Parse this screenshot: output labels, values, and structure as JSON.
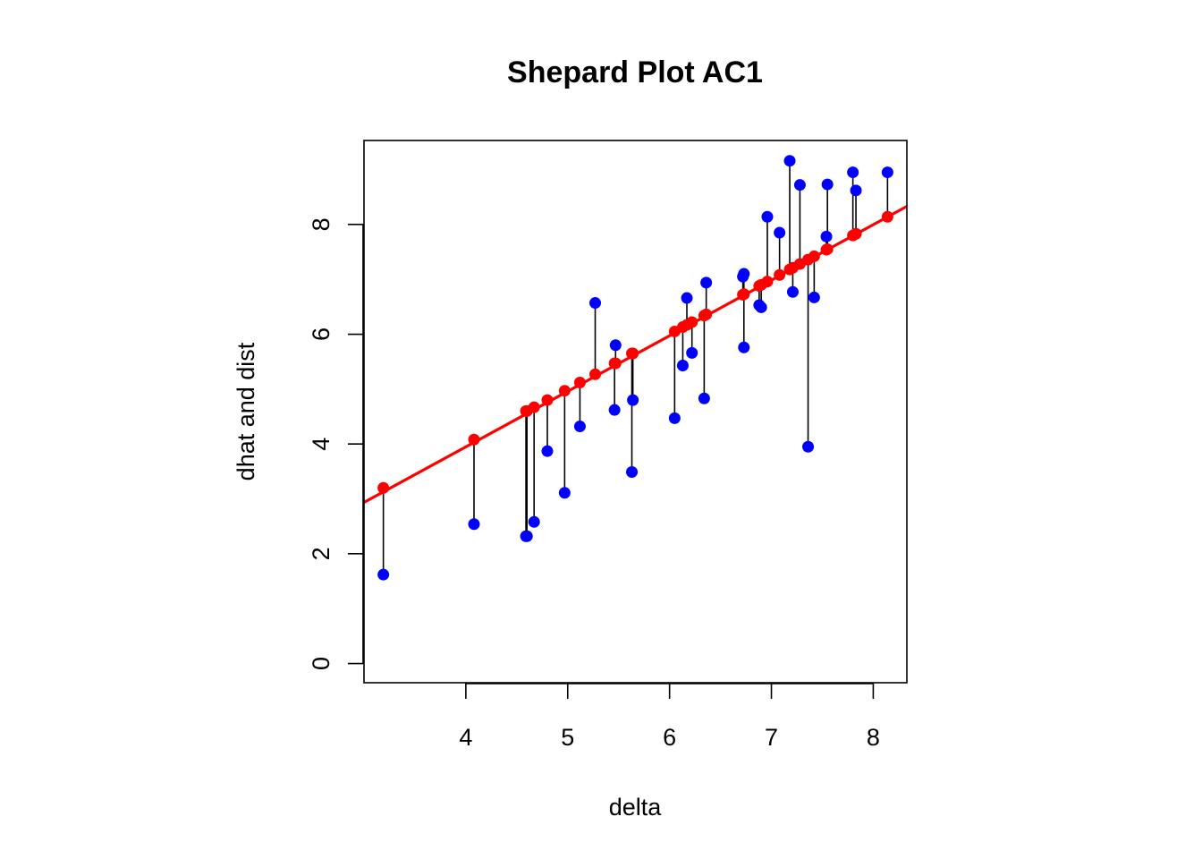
{
  "chart_data": {
    "type": "scatter",
    "title": "Shepard Plot AC1",
    "xlabel": "delta",
    "ylabel": "dhat and dist",
    "xlim": [
      3.0,
      8.33
    ],
    "ylim": [
      -0.35,
      9.53
    ],
    "xticks": [
      4,
      5,
      6,
      7,
      8
    ],
    "yticks": [
      0,
      2,
      4,
      6,
      8
    ],
    "grid": false,
    "legend": "none",
    "colors": {
      "dist_points": "#0000ff",
      "dhat_points": "#ff0000",
      "fit_line": "#ff0000",
      "residual_lines": "#000000",
      "frame": "#000000"
    },
    "fit_line": {
      "intercept": -0.1,
      "slope": 1.012
    },
    "series": [
      {
        "name": "dist",
        "x": [
          3.19,
          4.08,
          4.59,
          4.6,
          4.67,
          4.8,
          4.97,
          5.12,
          5.27,
          5.46,
          5.47,
          5.63,
          5.64,
          6.05,
          6.13,
          6.17,
          6.22,
          6.34,
          6.36,
          6.72,
          6.73,
          6.73,
          6.88,
          6.9,
          6.96,
          7.08,
          7.18,
          7.21,
          7.28,
          7.36,
          7.42,
          7.54,
          7.55,
          7.8,
          7.83,
          8.14
        ],
        "y": [
          1.62,
          2.54,
          2.32,
          2.32,
          2.58,
          3.87,
          3.11,
          4.32,
          6.57,
          4.62,
          5.8,
          3.49,
          4.8,
          4.47,
          5.43,
          6.66,
          5.66,
          4.83,
          6.94,
          7.05,
          7.1,
          5.76,
          6.53,
          6.49,
          8.14,
          7.85,
          9.16,
          6.77,
          8.72,
          3.95,
          6.67,
          7.78,
          8.73,
          8.95,
          8.62,
          8.95
        ]
      },
      {
        "name": "dhat",
        "x": [
          3.19,
          4.08,
          4.59,
          4.6,
          4.67,
          4.8,
          4.97,
          5.12,
          5.27,
          5.46,
          5.47,
          5.63,
          5.64,
          6.05,
          6.13,
          6.17,
          6.22,
          6.34,
          6.36,
          6.72,
          6.73,
          6.73,
          6.88,
          6.9,
          6.96,
          7.08,
          7.18,
          7.21,
          7.28,
          7.36,
          7.42,
          7.54,
          7.55,
          7.8,
          7.83,
          8.14
        ],
        "y": [
          3.2,
          4.08,
          4.6,
          4.6,
          4.67,
          4.8,
          4.97,
          5.12,
          5.27,
          5.47,
          5.47,
          5.65,
          5.65,
          6.05,
          6.13,
          6.17,
          6.22,
          6.34,
          6.36,
          6.72,
          6.73,
          6.73,
          6.88,
          6.9,
          6.96,
          7.08,
          7.18,
          7.21,
          7.28,
          7.36,
          7.42,
          7.54,
          7.55,
          7.8,
          7.83,
          8.14
        ]
      }
    ]
  }
}
